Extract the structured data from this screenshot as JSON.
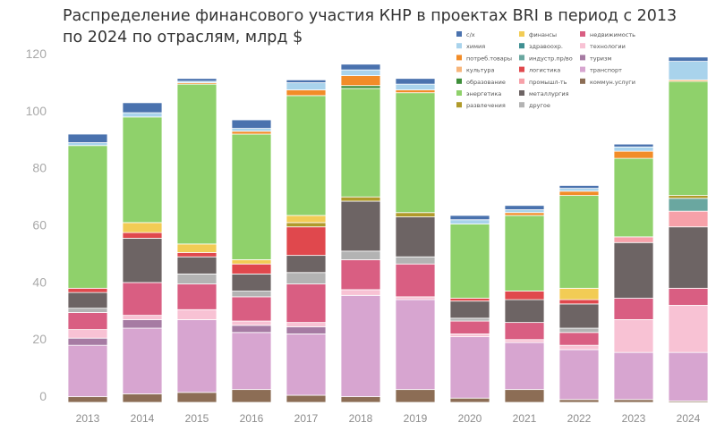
{
  "chart_data": {
    "type": "bar",
    "stacked": true,
    "title": "Распределение финансового участия КНР в проектах BRI в период с 2013 по 2024 по отраслям, млрд $",
    "xlabel": "",
    "ylabel": "",
    "ylim": [
      0,
      120
    ],
    "yticks": [
      0,
      20,
      40,
      60,
      80,
      100,
      120
    ],
    "grid": false,
    "legend_position": "top-right",
    "categories": [
      "2013",
      "2014",
      "2015",
      "2016",
      "2017",
      "2018",
      "2019",
      "2020",
      "2021",
      "2022",
      "2023",
      "2024"
    ],
    "series": [
      {
        "name": "коммун.услуги",
        "color": "#8c6d55",
        "values": [
          2,
          3,
          3.5,
          4.5,
          2.5,
          2,
          4.5,
          1.5,
          4.5,
          1,
          1,
          0.5
        ]
      },
      {
        "name": "транспорт",
        "color": "#d7a5d0",
        "values": [
          18,
          23,
          25.5,
          20,
          21.5,
          35.5,
          31.5,
          21.5,
          16.5,
          17.5,
          16.5,
          17
        ]
      },
      {
        "name": "туризм",
        "color": "#a67ba3",
        "values": [
          2.5,
          3,
          0,
          2.5,
          2.5,
          0,
          0,
          0,
          0,
          0,
          0,
          0
        ]
      },
      {
        "name": "технологии",
        "color": "#f8c2d4",
        "values": [
          3,
          1.5,
          3.5,
          1.5,
          1.5,
          2,
          1,
          1,
          1,
          1.5,
          11.5,
          16.5
        ]
      },
      {
        "name": "недвижимость",
        "color": "#d95e82",
        "values": [
          6,
          11.5,
          9,
          8.5,
          13.5,
          10.5,
          11.5,
          4.5,
          6,
          4.5,
          7.5,
          6
        ]
      },
      {
        "name": "другое",
        "color": "#b3b3b3",
        "values": [
          1.5,
          0,
          3.5,
          2,
          4,
          3,
          2.5,
          1,
          0,
          1.5,
          0,
          0
        ]
      },
      {
        "name": "металлургия",
        "color": "#6d6464",
        "values": [
          5.5,
          15.5,
          6,
          6,
          6,
          17.5,
          14,
          6,
          8,
          8.5,
          19.5,
          21.5
        ]
      },
      {
        "name": "промышл-ть",
        "color": "#f7a1a9",
        "values": [
          0,
          0,
          0,
          0,
          0,
          0,
          0,
          0,
          0,
          0,
          2,
          5.5
        ]
      },
      {
        "name": "логистика",
        "color": "#e0484d",
        "values": [
          1.5,
          2,
          1.5,
          3.5,
          10,
          0,
          0,
          1,
          3,
          1.5,
          0,
          0
        ]
      },
      {
        "name": "индустр.пр/во",
        "color": "#6aa7a0",
        "values": [
          0,
          0,
          0,
          0,
          0,
          0,
          0,
          0,
          0,
          0,
          0,
          4.5
        ]
      },
      {
        "name": "развлечения",
        "color": "#b09a2a",
        "values": [
          0,
          0,
          0,
          0,
          1.5,
          1.5,
          1.5,
          0,
          0,
          0,
          0,
          1
        ]
      },
      {
        "name": "финансы",
        "color": "#f2cc55",
        "values": [
          0,
          3.5,
          3,
          1.5,
          2.5,
          0,
          0,
          0,
          0,
          4,
          0,
          0
        ]
      },
      {
        "name": "энергетика",
        "color": "#8fd16b",
        "values": [
          50,
          37,
          56,
          44,
          42,
          38,
          42,
          26,
          26.5,
          32.5,
          27.5,
          40
        ]
      },
      {
        "name": "образование",
        "color": "#3e8e3a",
        "values": [
          0,
          0,
          0,
          0,
          0,
          1,
          0,
          0,
          0,
          0,
          0,
          0
        ]
      },
      {
        "name": "потреб.товары",
        "color": "#f28c28",
        "values": [
          0,
          0,
          0.5,
          1,
          2,
          3.5,
          1,
          0,
          1,
          1.5,
          2.5,
          0.5
        ]
      },
      {
        "name": "здравоохр.",
        "color": "#3f8f92",
        "values": [
          0,
          0,
          0,
          0,
          0,
          0,
          0,
          0,
          0,
          0,
          0,
          0
        ]
      },
      {
        "name": "культура",
        "color": "#f7b57a",
        "values": [
          0,
          0,
          0,
          0,
          0,
          0,
          0,
          0,
          0,
          0,
          0,
          0
        ]
      },
      {
        "name": "химия",
        "color": "#a9d3ec",
        "values": [
          1,
          1.5,
          0.5,
          1,
          2.5,
          2,
          2,
          1.5,
          1,
          1,
          1.5,
          6.5
        ]
      },
      {
        "name": "с/х",
        "color": "#4a72ae",
        "values": [
          3,
          3.5,
          1,
          3,
          1,
          2,
          2,
          1.5,
          1.5,
          1,
          1,
          1.5
        ]
      }
    ],
    "legend_columns": [
      [
        "с/х",
        "химия",
        "потреб.товары",
        "культура",
        "образование",
        "энергетика",
        "развлечения"
      ],
      [
        "финансы",
        "здравоохр.",
        "индустр.пр/во",
        "логистика",
        "промышл-ть",
        "металлургия",
        "другое"
      ],
      [
        "недвижимость",
        "технологии",
        "туризм",
        "транспорт",
        "коммун.услуги"
      ]
    ]
  }
}
